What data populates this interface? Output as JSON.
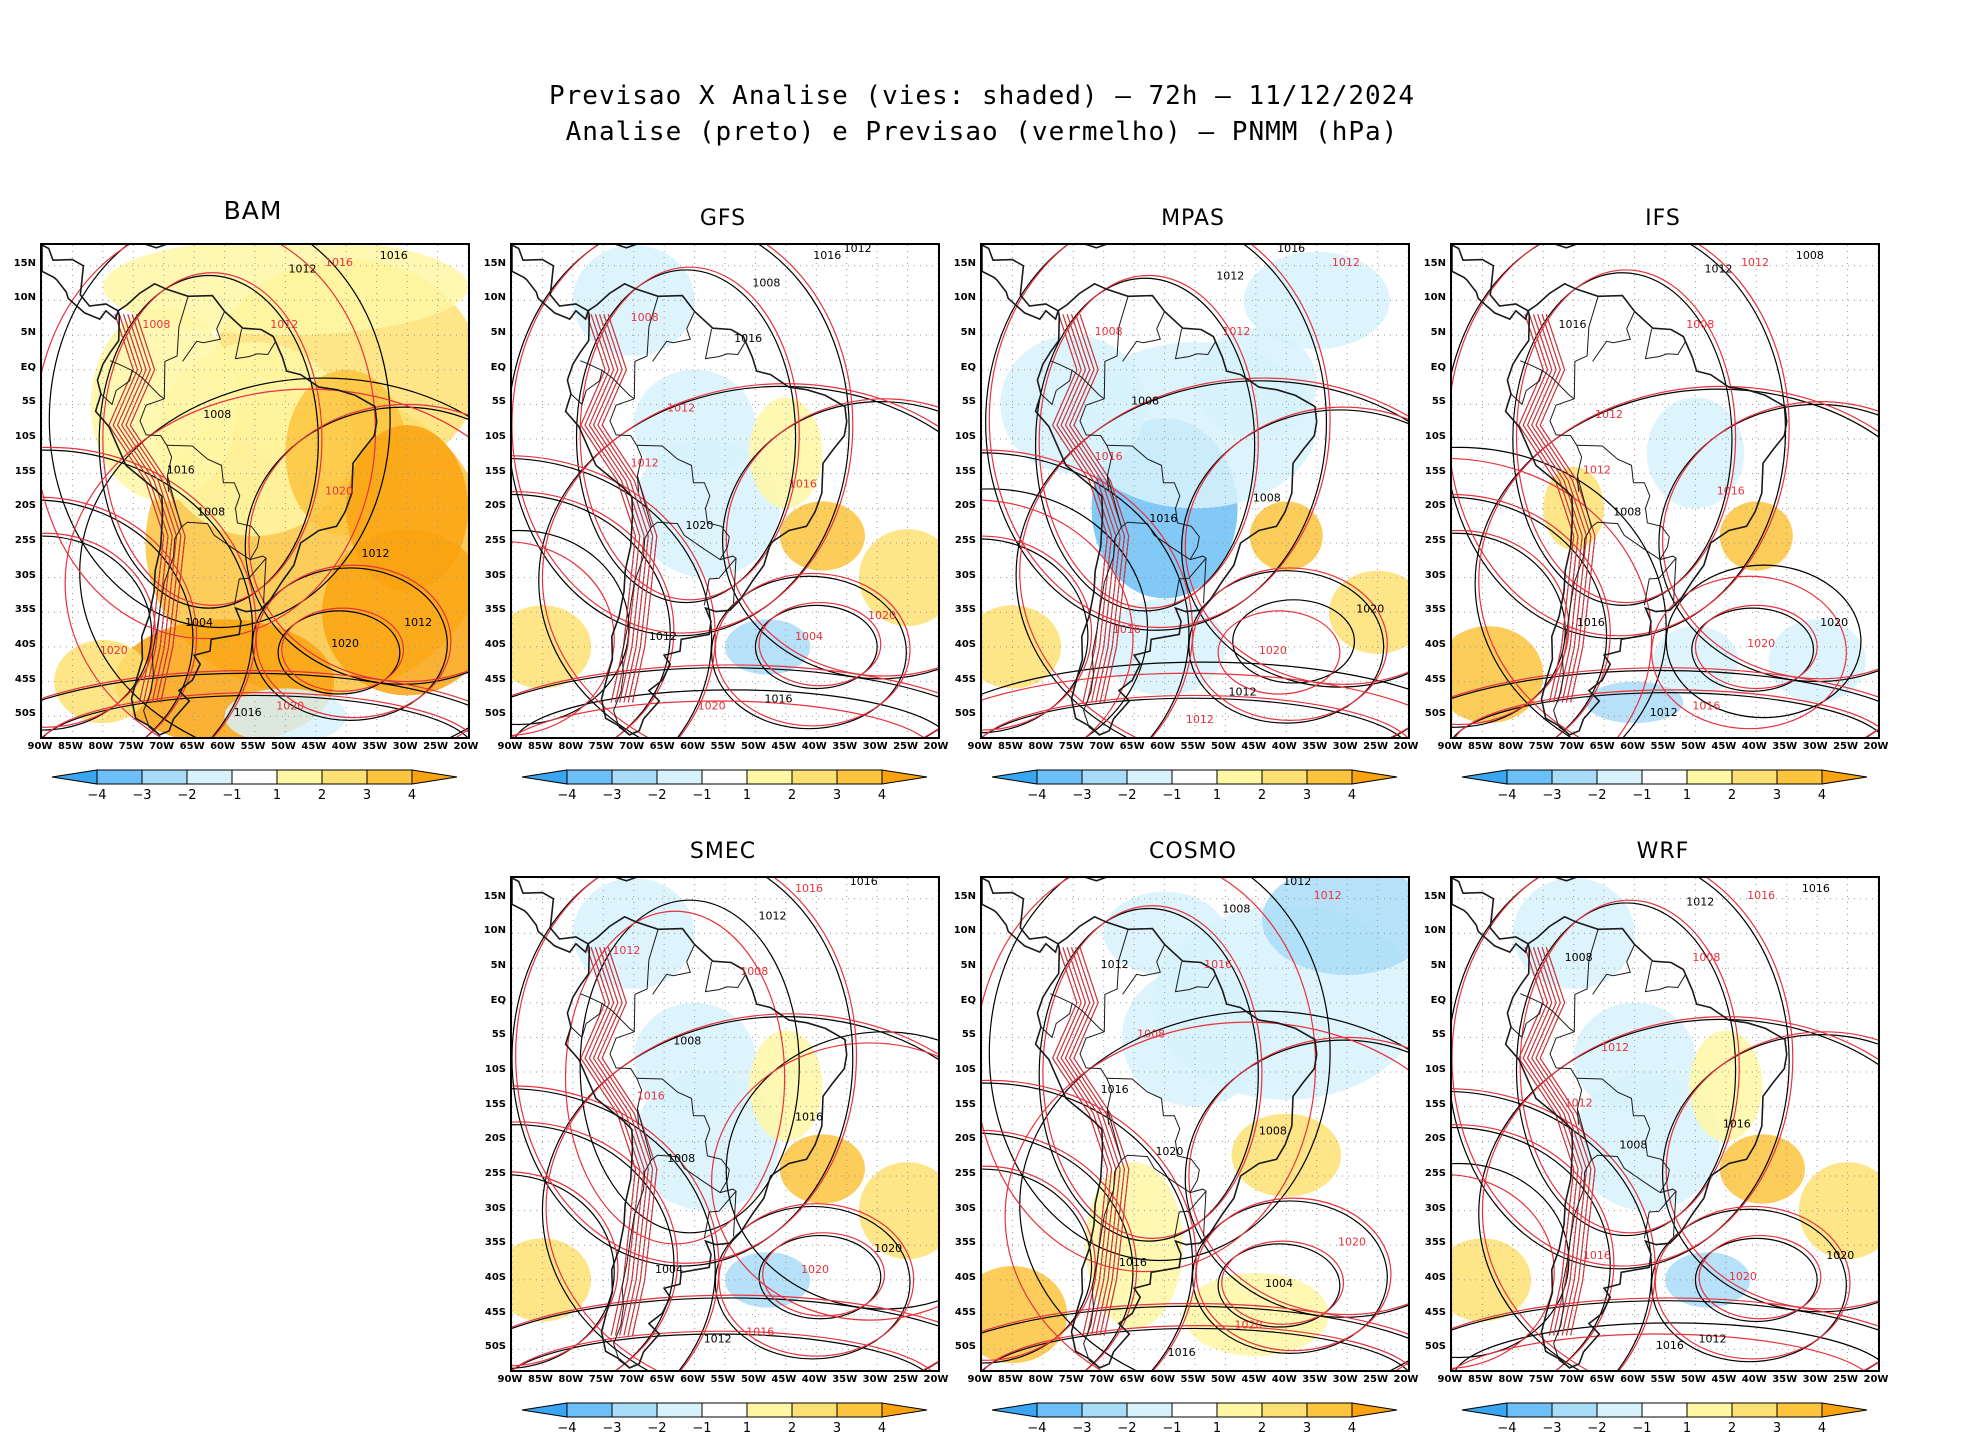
{
  "figure": {
    "title_line1": "Previsao X Analise (vies: shaded) — 72h — 11/12/2024",
    "title_line2": "Analise (preto) e Previsao (vermelho) — PNMM (hPa)"
  },
  "axes": {
    "lat_labels": [
      "15N",
      "10N",
      "5N",
      "EQ",
      "5S",
      "10S",
      "15S",
      "20S",
      "25S",
      "30S",
      "35S",
      "40S",
      "45S",
      "50S"
    ],
    "lon_labels": [
      "90W",
      "85W",
      "80W",
      "75W",
      "70W",
      "65W",
      "60W",
      "55W",
      "50W",
      "45W",
      "40W",
      "35W",
      "30W",
      "25W",
      "20W"
    ]
  },
  "colorbar": {
    "labels": [
      "−4",
      "−3",
      "−2",
      "−1",
      "1",
      "2",
      "3",
      "4"
    ],
    "colors": [
      "#3aa5f0",
      "#6cc0f7",
      "#a9dcf8",
      "#d7f2fb",
      "#ffffff",
      "#fff7a4",
      "#fde073",
      "#fdc43e",
      "#f9a311"
    ]
  },
  "colors": {
    "analysis_contour": "#000000",
    "forecast_contour": "#e8323c",
    "land_outline": "#1a1a1a",
    "grid": "#999999"
  },
  "panels": [
    {
      "model": "BAM",
      "bias": "warm",
      "contour_labels": [
        {
          "text": "1016",
          "series": "forecast"
        },
        {
          "text": "1016",
          "series": "analysis"
        },
        {
          "text": "1012",
          "series": "analysis"
        },
        {
          "text": "1008",
          "series": "analysis"
        },
        {
          "text": "1008",
          "series": "forecast"
        },
        {
          "text": "1012",
          "series": "forecast"
        },
        {
          "text": "1016",
          "series": "analysis"
        },
        {
          "text": "1020",
          "series": "forecast"
        },
        {
          "text": "1008",
          "series": "analysis"
        },
        {
          "text": "1012",
          "series": "analysis"
        },
        {
          "text": "1020",
          "series": "analysis"
        },
        {
          "text": "1004",
          "series": "analysis"
        },
        {
          "text": "1020",
          "series": "forecast"
        },
        {
          "text": "1016",
          "series": "analysis"
        },
        {
          "text": "1012",
          "series": "analysis"
        },
        {
          "text": "1020",
          "series": "forecast"
        }
      ]
    },
    {
      "model": "GFS",
      "bias": "mixed",
      "contour_labels": [
        {
          "text": "1016",
          "series": "analysis"
        },
        {
          "text": "1012",
          "series": "analysis"
        },
        {
          "text": "1008",
          "series": "analysis"
        },
        {
          "text": "1012",
          "series": "forecast"
        },
        {
          "text": "1008",
          "series": "forecast"
        },
        {
          "text": "1016",
          "series": "analysis"
        },
        {
          "text": "1012",
          "series": "forecast"
        },
        {
          "text": "1016",
          "series": "forecast"
        },
        {
          "text": "1020",
          "series": "analysis"
        },
        {
          "text": "1020",
          "series": "forecast"
        },
        {
          "text": "1004",
          "series": "forecast"
        },
        {
          "text": "1012",
          "series": "analysis"
        },
        {
          "text": "1016",
          "series": "analysis"
        },
        {
          "text": "1020",
          "series": "forecast"
        }
      ]
    },
    {
      "model": "MPAS",
      "bias": "cold",
      "contour_labels": [
        {
          "text": "1016",
          "series": "analysis"
        },
        {
          "text": "1012",
          "series": "forecast"
        },
        {
          "text": "1012",
          "series": "analysis"
        },
        {
          "text": "1008",
          "series": "analysis"
        },
        {
          "text": "1008",
          "series": "forecast"
        },
        {
          "text": "1012",
          "series": "forecast"
        },
        {
          "text": "1016",
          "series": "forecast"
        },
        {
          "text": "1008",
          "series": "analysis"
        },
        {
          "text": "1016",
          "series": "analysis"
        },
        {
          "text": "1020",
          "series": "analysis"
        },
        {
          "text": "1020",
          "series": "forecast"
        },
        {
          "text": "1016",
          "series": "forecast"
        },
        {
          "text": "1012",
          "series": "analysis"
        },
        {
          "text": "1012",
          "series": "forecast"
        }
      ]
    },
    {
      "model": "IFS",
      "bias": "neutral",
      "contour_labels": [
        {
          "text": "1012",
          "series": "forecast"
        },
        {
          "text": "1008",
          "series": "analysis"
        },
        {
          "text": "1012",
          "series": "analysis"
        },
        {
          "text": "1012",
          "series": "forecast"
        },
        {
          "text": "1016",
          "series": "analysis"
        },
        {
          "text": "1008",
          "series": "forecast"
        },
        {
          "text": "1012",
          "series": "forecast"
        },
        {
          "text": "1016",
          "series": "forecast"
        },
        {
          "text": "1008",
          "series": "analysis"
        },
        {
          "text": "1020",
          "series": "analysis"
        },
        {
          "text": "1020",
          "series": "forecast"
        },
        {
          "text": "1016",
          "series": "analysis"
        },
        {
          "text": "1016",
          "series": "forecast"
        },
        {
          "text": "1012",
          "series": "analysis"
        }
      ]
    },
    {
      "model": "SMEC",
      "bias": "mixed",
      "contour_labels": [
        {
          "text": "1016",
          "series": "forecast"
        },
        {
          "text": "1016",
          "series": "analysis"
        },
        {
          "text": "1012",
          "series": "analysis"
        },
        {
          "text": "1008",
          "series": "analysis"
        },
        {
          "text": "1012",
          "series": "forecast"
        },
        {
          "text": "1008",
          "series": "forecast"
        },
        {
          "text": "1016",
          "series": "forecast"
        },
        {
          "text": "1016",
          "series": "analysis"
        },
        {
          "text": "1008",
          "series": "analysis"
        },
        {
          "text": "1020",
          "series": "analysis"
        },
        {
          "text": "1020",
          "series": "forecast"
        },
        {
          "text": "1004",
          "series": "analysis"
        },
        {
          "text": "1016",
          "series": "forecast"
        },
        {
          "text": "1012",
          "series": "analysis"
        }
      ]
    },
    {
      "model": "COSMO",
      "bias": "coldnorth",
      "contour_labels": [
        {
          "text": "1012",
          "series": "analysis"
        },
        {
          "text": "1012",
          "series": "forecast"
        },
        {
          "text": "1008",
          "series": "analysis"
        },
        {
          "text": "1008",
          "series": "forecast"
        },
        {
          "text": "1012",
          "series": "analysis"
        },
        {
          "text": "1016",
          "series": "forecast"
        },
        {
          "text": "1016",
          "series": "analysis"
        },
        {
          "text": "1008",
          "series": "analysis"
        },
        {
          "text": "1020",
          "series": "analysis"
        },
        {
          "text": "1020",
          "series": "forecast"
        },
        {
          "text": "1004",
          "series": "analysis"
        },
        {
          "text": "1016",
          "series": "analysis"
        },
        {
          "text": "1020",
          "series": "forecast"
        },
        {
          "text": "1016",
          "series": "analysis"
        }
      ]
    },
    {
      "model": "WRF",
      "bias": "mixed",
      "contour_labels": [
        {
          "text": "1016",
          "series": "forecast"
        },
        {
          "text": "1016",
          "series": "analysis"
        },
        {
          "text": "1012",
          "series": "analysis"
        },
        {
          "text": "1012",
          "series": "forecast"
        },
        {
          "text": "1008",
          "series": "analysis"
        },
        {
          "text": "1008",
          "series": "forecast"
        },
        {
          "text": "1012",
          "series": "forecast"
        },
        {
          "text": "1016",
          "series": "analysis"
        },
        {
          "text": "1008",
          "series": "analysis"
        },
        {
          "text": "1020",
          "series": "analysis"
        },
        {
          "text": "1020",
          "series": "forecast"
        },
        {
          "text": "1016",
          "series": "forecast"
        },
        {
          "text": "1012",
          "series": "analysis"
        },
        {
          "text": "1016",
          "series": "analysis"
        }
      ]
    }
  ]
}
